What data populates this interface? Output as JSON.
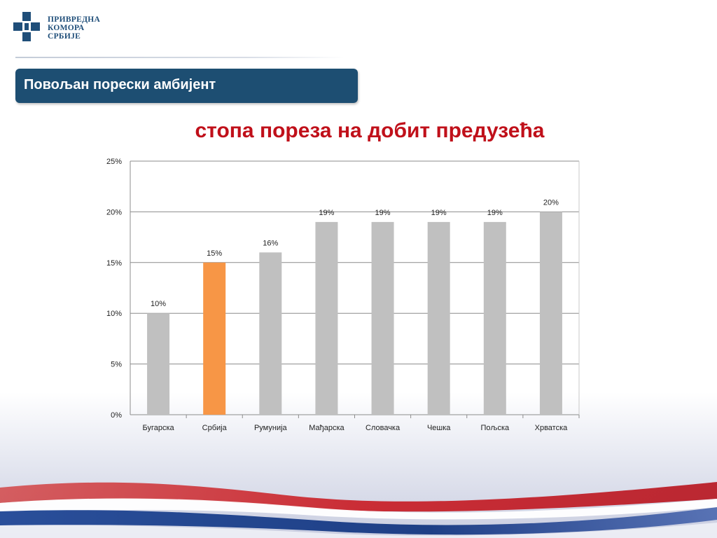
{
  "header": {
    "logo_lines": [
      "ПРИВРЕДНА",
      "КОМОРА",
      "СРБИЈЕ"
    ],
    "logo_color": "#1f4e79"
  },
  "section": {
    "title": "Повољан порески амбијент",
    "banner_color": "#1d4e72"
  },
  "chart_data": {
    "type": "bar",
    "title": "стопа пореза на добит предузећа",
    "title_color": "#c0101a",
    "categories": [
      "Бугарска",
      "Србија",
      "Румунија",
      "Мађарска",
      "Словачка",
      "Чешка",
      "Пољска",
      "Хрватска"
    ],
    "values": [
      10,
      15,
      16,
      19,
      19,
      19,
      19,
      20
    ],
    "data_labels": [
      "10%",
      "15%",
      "16%",
      "19%",
      "19%",
      "19%",
      "19%",
      "20%"
    ],
    "bar_colors": [
      "#c0c0c0",
      "#f79646",
      "#c0c0c0",
      "#c0c0c0",
      "#c0c0c0",
      "#c0c0c0",
      "#c0c0c0",
      "#c0c0c0"
    ],
    "ylim": [
      0,
      25
    ],
    "yticks": [
      0,
      5,
      10,
      15,
      20,
      25
    ],
    "ytick_labels": [
      "0%",
      "5%",
      "10%",
      "15%",
      "20%",
      "25%"
    ],
    "grid": true,
    "legend": "none"
  }
}
